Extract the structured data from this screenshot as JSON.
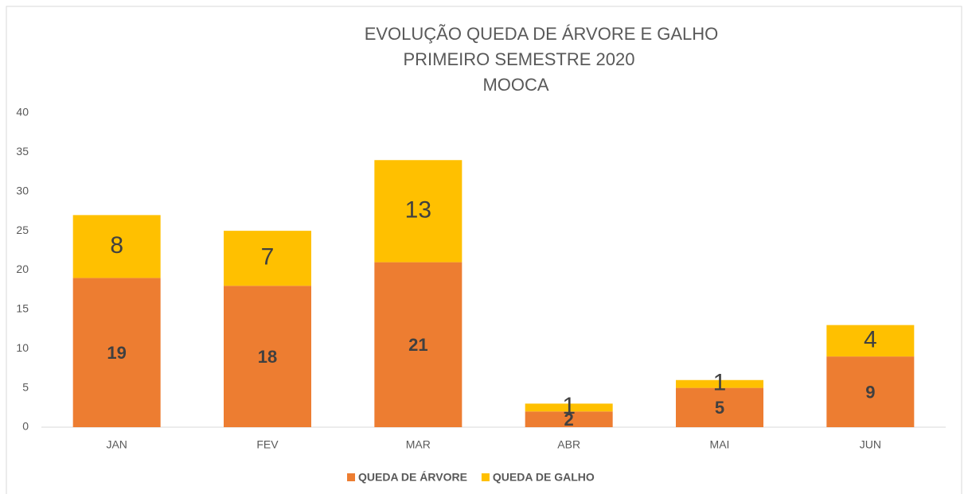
{
  "chart_data": {
    "type": "stacked_bar",
    "title": [
      "EVOLUÇÃO QUEDA DE ÁRVORE E GALHO",
      "PRIMEIRO SEMESTRE 2020",
      "MOOCA"
    ],
    "categories": [
      "JAN",
      "FEV",
      "MAR",
      "ABR",
      "MAI",
      "JUN"
    ],
    "series": [
      {
        "name": "QUEDA DE ÁRVORE",
        "color": "#ed7d31",
        "values": [
          19,
          18,
          21,
          2,
          5,
          9
        ]
      },
      {
        "name": "QUEDA DE GALHO",
        "color": "#ffc000",
        "values": [
          8,
          7,
          13,
          1,
          1,
          4
        ]
      }
    ],
    "ylim": [
      0,
      40
    ],
    "yticks": [
      0,
      5,
      10,
      15,
      20,
      25,
      30,
      35,
      40
    ],
    "grid": false,
    "legend": "bottom"
  }
}
